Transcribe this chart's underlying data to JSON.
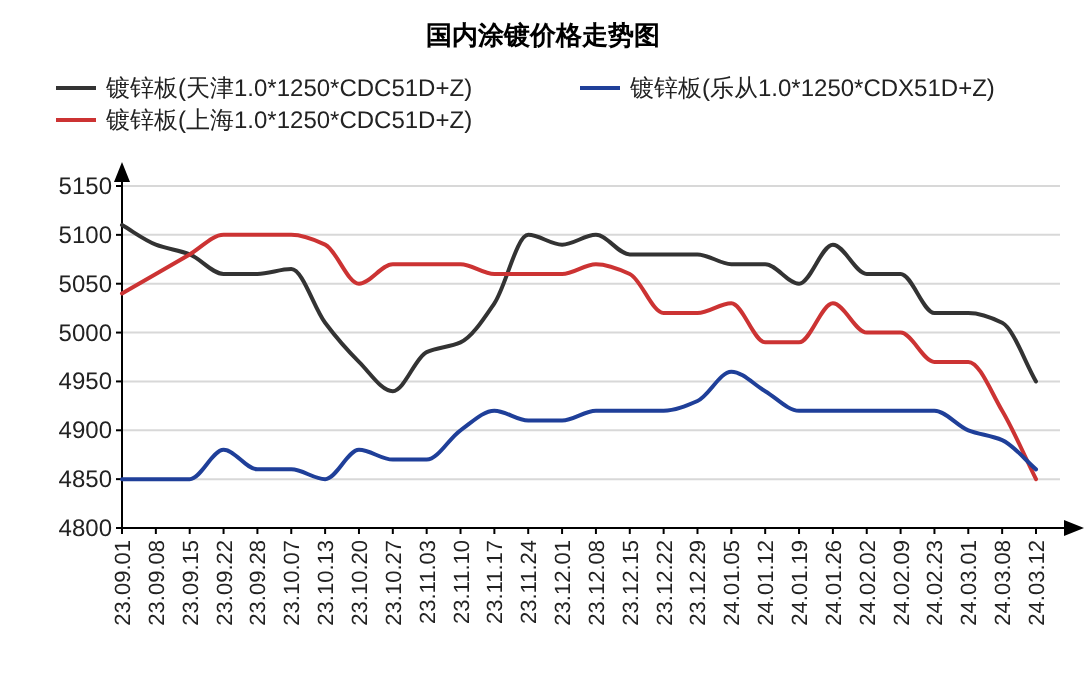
{
  "chart_data": {
    "type": "line",
    "title": "国内涂镀价格走势图",
    "categories": [
      "23.09.01",
      "23.09.08",
      "23.09.15",
      "23.09.22",
      "23.09.28",
      "23.10.07",
      "23.10.13",
      "23.10.20",
      "23.10.27",
      "23.11.03",
      "23.11.10",
      "23.11.17",
      "23.11.24",
      "23.12.01",
      "23.12.08",
      "23.12.15",
      "23.12.22",
      "23.12.29",
      "24.01.05",
      "24.01.12",
      "24.01.19",
      "24.01.26",
      "24.02.02",
      "24.02.09",
      "24.02.23",
      "24.03.01",
      "24.03.08",
      "24.03.12"
    ],
    "series": [
      {
        "name": "镀锌板(天津1.0*1250*CDC51D+Z)",
        "color": "#333333",
        "values": [
          5110,
          5090,
          5080,
          5060,
          5060,
          5065,
          5010,
          4970,
          4940,
          4980,
          4990,
          5030,
          5100,
          5090,
          5100,
          5080,
          5080,
          5080,
          5070,
          5070,
          5050,
          5090,
          5060,
          5060,
          5020,
          5020,
          5010,
          4950
        ]
      },
      {
        "name": "镀锌板(上海1.0*1250*CDC51D+Z)",
        "color": "#cc3333",
        "values": [
          5040,
          5060,
          5080,
          5100,
          5100,
          5100,
          5090,
          5050,
          5070,
          5070,
          5070,
          5060,
          5060,
          5060,
          5070,
          5060,
          5020,
          5020,
          5030,
          4990,
          4990,
          5030,
          5000,
          5000,
          4970,
          4970,
          4920,
          4850
        ]
      },
      {
        "name": "镀锌板(乐从1.0*1250*CDX51D+Z)",
        "color": "#1f3f99",
        "values": [
          4850,
          4850,
          4850,
          4880,
          4860,
          4860,
          4850,
          4880,
          4870,
          4870,
          4900,
          4920,
          4910,
          4910,
          4920,
          4920,
          4920,
          4930,
          4960,
          4940,
          4920,
          4920,
          4920,
          4920,
          4920,
          4900,
          4890,
          4860
        ]
      }
    ],
    "ylim": [
      4800,
      5150
    ],
    "yticks": [
      4800,
      4850,
      4900,
      4950,
      5000,
      5050,
      5100,
      5150
    ],
    "grid": "y",
    "legend": "top",
    "marker": "none",
    "line_style": "solid"
  }
}
